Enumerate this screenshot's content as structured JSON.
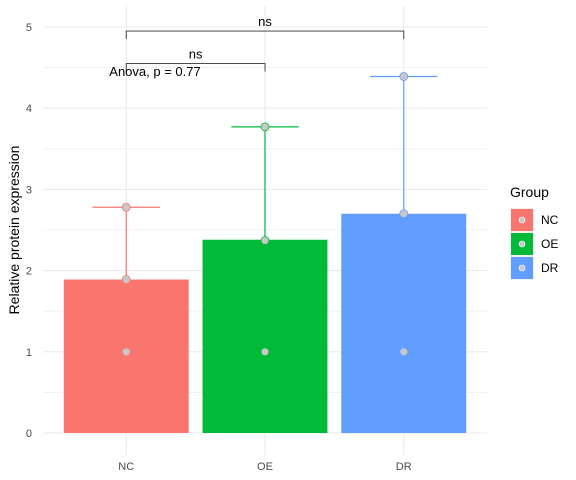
{
  "chart_data": {
    "type": "bar",
    "categories": [
      "NC",
      "OE",
      "DR"
    ],
    "values": [
      1.89,
      2.38,
      2.7
    ],
    "error_max": [
      2.78,
      3.77,
      4.39
    ],
    "points": [
      [
        1.0,
        1.89,
        2.78
      ],
      [
        1.0,
        2.37,
        3.77
      ],
      [
        1.0,
        2.7,
        4.39
      ]
    ],
    "colors": [
      "#F8766D",
      "#00BA38",
      "#619CFF"
    ],
    "xlabel": "",
    "ylabel": "Relative protein expression",
    "ylim": [
      0,
      5.25
    ],
    "yticks": [
      "0",
      "1",
      "2",
      "3",
      "4",
      "5"
    ],
    "grid": true,
    "legend": {
      "title": "Group",
      "position": "right",
      "items": [
        "NC",
        "OE",
        "DR"
      ]
    },
    "annotations": {
      "anova": "Anova, p = 0.77",
      "brackets": [
        {
          "from": "NC",
          "to": "OE",
          "y": 4.55,
          "label": "ns"
        },
        {
          "from": "NC",
          "to": "DR",
          "y": 4.95,
          "label": "ns"
        }
      ]
    }
  }
}
